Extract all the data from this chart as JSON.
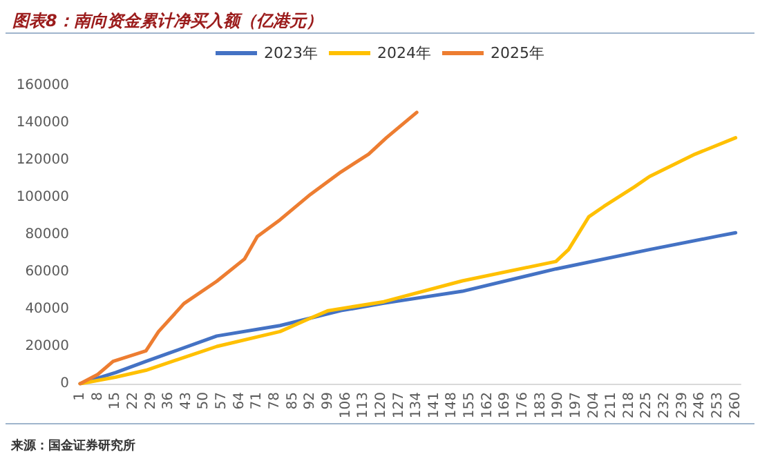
{
  "chart_data": {
    "type": "line",
    "title": "图表8：南向资金累计净买入额（亿港元）",
    "annotations": [
      "来源：国金证券研究所"
    ],
    "xlim": [
      1,
      262
    ],
    "xticks": [
      1,
      8,
      15,
      22,
      29,
      36,
      43,
      50,
      57,
      64,
      71,
      78,
      85,
      92,
      99,
      106,
      113,
      120,
      127,
      134,
      141,
      148,
      155,
      162,
      169,
      176,
      183,
      190,
      197,
      204,
      211,
      218,
      225,
      232,
      239,
      246,
      253,
      260
    ],
    "ylim": [
      0,
      160000
    ],
    "yticks": [
      0,
      20000,
      40000,
      60000,
      80000,
      100000,
      120000,
      140000,
      160000
    ],
    "legend": "top",
    "grid": false,
    "marker": "none",
    "line_style": "solid",
    "series": [
      {
        "name": "2023年",
        "color": "#4472c4",
        "x": [
          1,
          15,
          27,
          55,
          80,
          104,
          121,
          152,
          189,
          226,
          253,
          260
        ],
        "values": [
          0,
          6000,
          12000,
          25600,
          31200,
          39200,
          43200,
          49600,
          61600,
          72000,
          79200,
          81000
        ]
      },
      {
        "name": "2024年",
        "color": "#ffc000",
        "x": [
          1,
          15,
          27,
          55,
          80,
          92,
          99,
          121,
          152,
          189,
          194,
          202,
          208,
          220,
          226,
          244,
          260
        ],
        "values": [
          0,
          3500,
          7200,
          20000,
          28000,
          35200,
          39200,
          44000,
          55200,
          65600,
          72000,
          89600,
          95200,
          105600,
          111200,
          123200,
          132000
        ]
      },
      {
        "name": "2025年",
        "color": "#ed7d31",
        "x": [
          1,
          8,
          14,
          27,
          32,
          42,
          55,
          66,
          71,
          80,
          92,
          104,
          115,
          122,
          134
        ],
        "values": [
          0,
          5000,
          12000,
          17600,
          28000,
          43000,
          55000,
          67000,
          79000,
          88000,
          101600,
          113600,
          123200,
          132000,
          145600
        ]
      }
    ]
  }
}
